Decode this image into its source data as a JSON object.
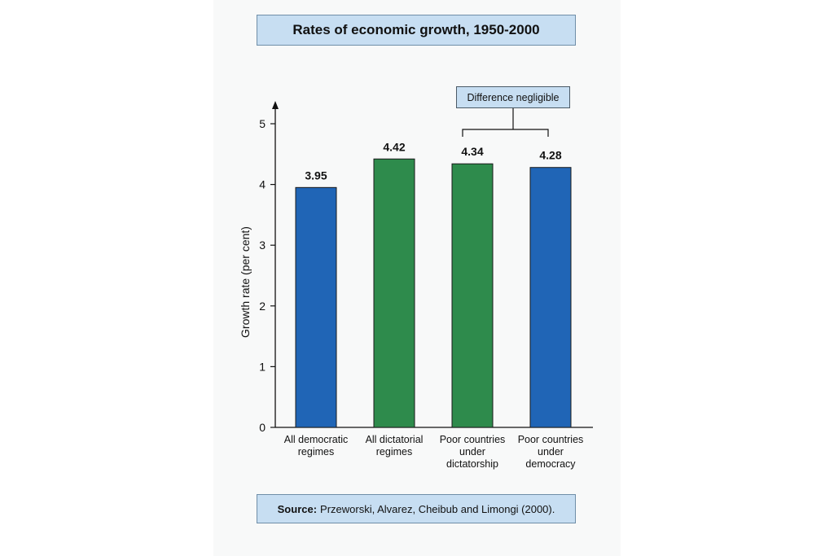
{
  "chart_data": {
    "type": "bar",
    "title": "Rates of economic growth, 1950-2000",
    "ylabel": "Growth rate (per cent)",
    "xlabel": "",
    "ylim": [
      0,
      5
    ],
    "yticks": [
      "0",
      "1",
      "2",
      "3",
      "4",
      "5"
    ],
    "categories": [
      [
        "All democratic",
        "regimes"
      ],
      [
        "All dictatorial",
        "regimes"
      ],
      [
        "Poor countries",
        "under",
        "dictatorship"
      ],
      [
        "Poor countries",
        "under",
        "democracy"
      ]
    ],
    "values": [
      3.95,
      4.42,
      4.34,
      4.28
    ],
    "value_labels": [
      "3.95",
      "4.42",
      "4.34",
      "4.28"
    ],
    "bar_colors": [
      "#2065b6",
      "#2e8b4c",
      "#2e8b4c",
      "#2065b6"
    ],
    "annotation": {
      "text": "Difference negligible",
      "spans_categories": [
        2,
        3
      ]
    },
    "source": {
      "label": "Source:",
      "text": "Przeworski, Alvarez, Cheibub and Limongi (2000)."
    }
  }
}
